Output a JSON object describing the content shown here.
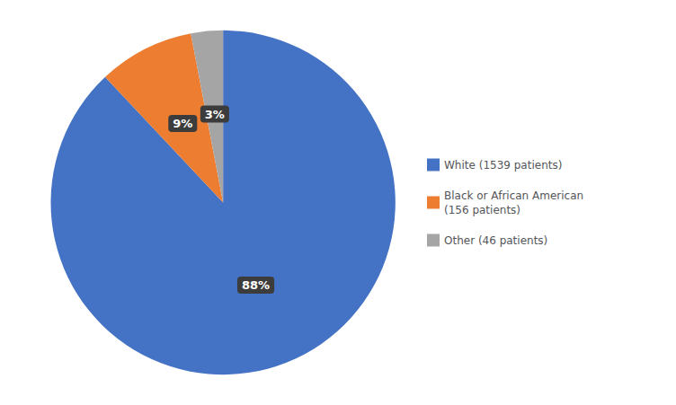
{
  "chart_data": {
    "type": "pie",
    "categories": [
      "White (1539 patients)",
      "Black or African American\n(156 patients)",
      "Other (46 patients)"
    ],
    "values": [
      88,
      9,
      3
    ],
    "value_labels": [
      "88%",
      "9%",
      "3%"
    ],
    "colors": [
      "#4472C4",
      "#ED7D31",
      "#A5A5A5"
    ],
    "data_labels": true,
    "legend": "right"
  }
}
